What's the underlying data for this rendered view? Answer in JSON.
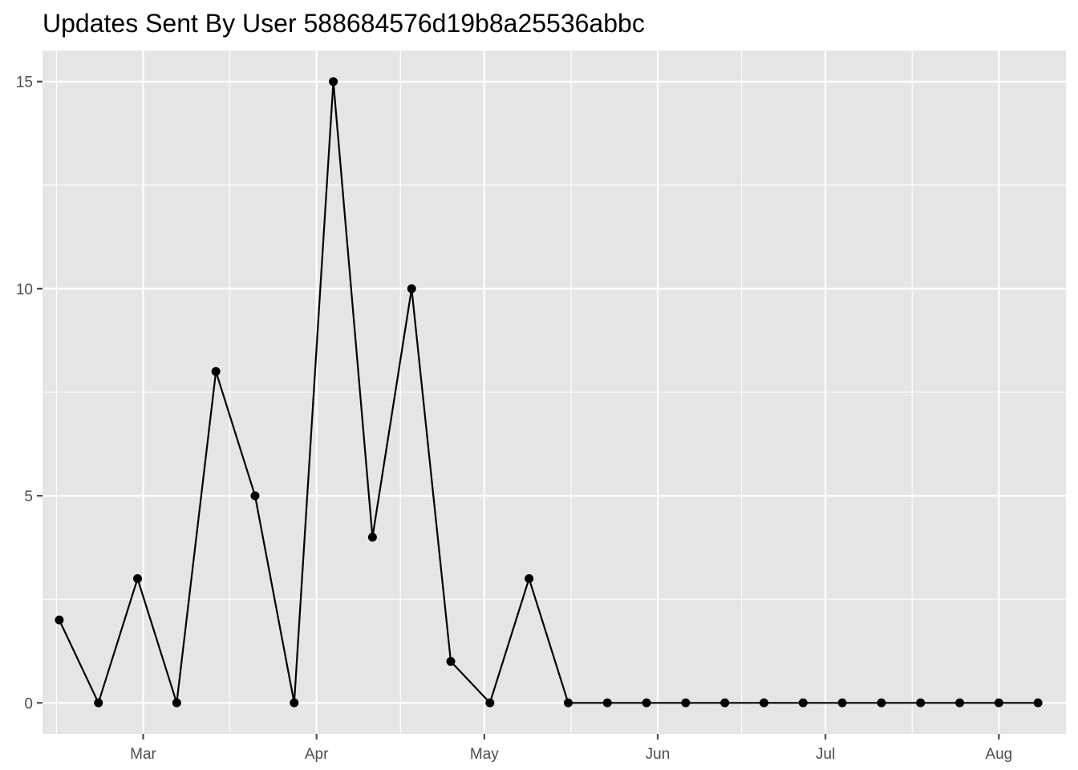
{
  "chart_data": {
    "type": "line",
    "title": "Updates Sent By User 588684576d19b8a25536abbc",
    "xlabel": "",
    "ylabel": "",
    "x_tick_labels": [
      "Mar",
      "Apr",
      "May",
      "Jun",
      "Jul",
      "Aug"
    ],
    "y_tick_labels": [
      "0",
      "5",
      "10",
      "15"
    ],
    "ylim": [
      -0.75,
      15.75
    ],
    "xlim": [
      "2017-02-11",
      "2017-08-13"
    ],
    "grid": true,
    "legend": "none",
    "x_ticks": [
      "2017-03-01",
      "2017-04-01",
      "2017-05-01",
      "2017-06-01",
      "2017-07-01",
      "2017-08-01"
    ],
    "y_ticks": [
      0,
      5,
      10,
      15
    ],
    "x": [
      "2017-02-14",
      "2017-02-21",
      "2017-02-28",
      "2017-03-07",
      "2017-03-14",
      "2017-03-21",
      "2017-03-28",
      "2017-04-04",
      "2017-04-11",
      "2017-04-18",
      "2017-04-25",
      "2017-05-02",
      "2017-05-09",
      "2017-05-16",
      "2017-05-23",
      "2017-05-30",
      "2017-06-06",
      "2017-06-13",
      "2017-06-20",
      "2017-06-27",
      "2017-07-04",
      "2017-07-11",
      "2017-07-18",
      "2017-07-25",
      "2017-08-01",
      "2017-08-08"
    ],
    "values": [
      2,
      0,
      3,
      0,
      8,
      5,
      0,
      15,
      4,
      10,
      1,
      0,
      3,
      0,
      0,
      0,
      0,
      0,
      0,
      0,
      0,
      0,
      0,
      0,
      0,
      0
    ],
    "colors": {
      "panel": "#e5e5e5",
      "grid": "#ffffff",
      "line": "#000000",
      "point": "#000000",
      "tick": "#4d4d4d"
    }
  }
}
